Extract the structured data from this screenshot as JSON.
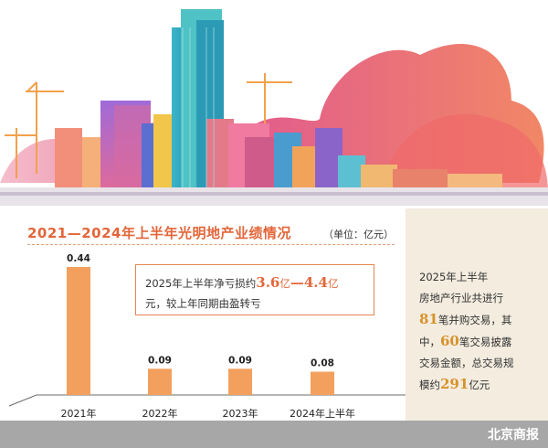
{
  "colors": {
    "bar": "#f3a05e",
    "accent": "#e3663a",
    "gold": "#d8922a",
    "panel": "#f3ecdf",
    "footer": "#a7a7a7"
  },
  "header": {
    "title": "2021—2024年上半年光明地产业绩情况",
    "unit": "（单位：亿元）"
  },
  "chart_data": {
    "type": "bar",
    "categories": [
      "2021年",
      "2022年",
      "2023年",
      "2024年上半年"
    ],
    "values": [
      0.44,
      0.09,
      0.09,
      0.08
    ],
    "value_labels": [
      "0.44",
      "0.09",
      "0.09",
      "0.08"
    ],
    "title": "2021—2024年上半年光明地产业绩情况",
    "unit": "（单位：亿元）",
    "ylim": [
      0,
      0.44
    ]
  },
  "callout": {
    "line1_prefix": "2025年上半年净亏损约",
    "low": "3.6",
    "yi1": "亿",
    "dash": "—",
    "high": "4.4",
    "yi2": "亿",
    "line2": "元，较上年同期由盈转亏"
  },
  "panel": {
    "l1": "2025年上半年",
    "l2": "房地产行业共进行",
    "n1": "81",
    "l3": "笔并购交易，其",
    "l4a": "中，",
    "n2": "60",
    "l4b": "笔交易披露",
    "l5": "交易金额，总交易规",
    "l6a": "模约",
    "n3": "291",
    "l6b": "亿元"
  },
  "footer": {
    "brand": "北京商报"
  }
}
